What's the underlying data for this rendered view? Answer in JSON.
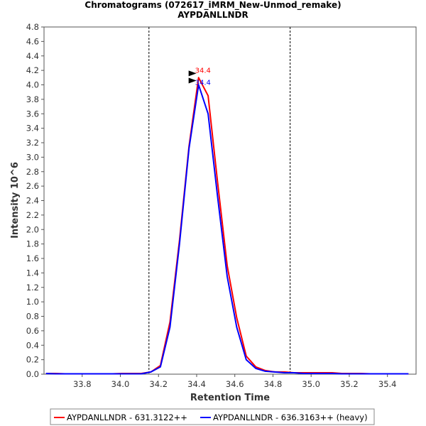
{
  "chart_data": {
    "type": "line",
    "title": "Chromatograms (072617_iMRM_New-Unmod_remake)",
    "subtitle": "AYPDANLLNDR",
    "xlabel": "Retention Time",
    "ylabel": "Intensity 10^6",
    "xlim": [
      33.6,
      35.55
    ],
    "ylim": [
      0,
      4.8
    ],
    "x_ticks": [
      "33.8",
      "34.0",
      "34.2",
      "34.4",
      "34.6",
      "34.8",
      "35.0",
      "35.2",
      "35.4"
    ],
    "x_tick_values": [
      33.8,
      34.0,
      34.2,
      34.4,
      34.6,
      34.8,
      35.0,
      35.2,
      35.4
    ],
    "y_ticks": [
      "0.0",
      "0.2",
      "0.4",
      "0.6",
      "0.8",
      "1.0",
      "1.2",
      "1.4",
      "1.6",
      "1.8",
      "2.0",
      "2.2",
      "2.4",
      "2.6",
      "2.8",
      "3.0",
      "3.2",
      "3.4",
      "3.6",
      "3.8",
      "4.0",
      "4.2",
      "4.4",
      "4.6",
      "4.8"
    ],
    "y_tick_values": [
      0.0,
      0.2,
      0.4,
      0.6,
      0.8,
      1.0,
      1.2,
      1.4,
      1.6,
      1.8,
      2.0,
      2.2,
      2.4,
      2.6,
      2.8,
      3.0,
      3.2,
      3.4,
      3.6,
      3.8,
      4.0,
      4.2,
      4.4,
      4.6,
      4.8
    ],
    "integration_bounds": [
      34.15,
      34.89
    ],
    "grid": false,
    "legend_position": "bottom",
    "series": [
      {
        "name": "AYPDANLLNDR - 631.3122++",
        "color": "#ff0000",
        "peak_label": "34.4",
        "x": [
          33.61,
          33.66,
          33.71,
          33.76,
          33.81,
          33.86,
          33.91,
          33.96,
          34.01,
          34.06,
          34.11,
          34.16,
          34.21,
          34.26,
          34.31,
          34.36,
          34.41,
          34.46,
          34.51,
          34.56,
          34.61,
          34.66,
          34.71,
          34.76,
          34.81,
          34.86,
          34.91,
          34.96,
          35.01,
          35.06,
          35.11,
          35.16,
          35.21,
          35.26,
          35.31,
          35.36,
          35.41,
          35.46,
          35.51
        ],
        "y": [
          0.01,
          0.01,
          0.005,
          0.005,
          0.005,
          0.005,
          0.005,
          0.005,
          0.01,
          0.01,
          0.01,
          0.03,
          0.12,
          0.72,
          1.85,
          3.15,
          4.1,
          3.85,
          2.65,
          1.5,
          0.78,
          0.25,
          0.1,
          0.05,
          0.03,
          0.03,
          0.02,
          0.02,
          0.02,
          0.02,
          0.02,
          0.01,
          0.01,
          0.01,
          0.005,
          0.005,
          0.005,
          0.005,
          0.005
        ]
      },
      {
        "name": "AYPDANLLNDR - 636.3163++ (heavy)",
        "color": "#0000ff",
        "peak_label": "34.4",
        "x": [
          33.61,
          33.66,
          33.71,
          33.76,
          33.81,
          33.86,
          33.91,
          33.96,
          34.01,
          34.06,
          34.11,
          34.16,
          34.21,
          34.26,
          34.31,
          34.36,
          34.41,
          34.46,
          34.51,
          34.56,
          34.61,
          34.66,
          34.71,
          34.76,
          34.81,
          34.86,
          34.91,
          34.96,
          35.01,
          35.06,
          35.11,
          35.16,
          35.21,
          35.26,
          35.31,
          35.36,
          35.41,
          35.46,
          35.51
        ],
        "y": [
          0.01,
          0.005,
          0.005,
          0.005,
          0.005,
          0.005,
          0.005,
          0.005,
          0.005,
          0.005,
          0.005,
          0.03,
          0.1,
          0.65,
          1.8,
          3.12,
          4.0,
          3.6,
          2.45,
          1.35,
          0.65,
          0.2,
          0.08,
          0.04,
          0.03,
          0.02,
          0.02,
          0.01,
          0.01,
          0.01,
          0.01,
          0.005,
          0.005,
          0.005,
          0.005,
          0.005,
          0.005,
          0.005,
          0.005
        ]
      }
    ]
  }
}
